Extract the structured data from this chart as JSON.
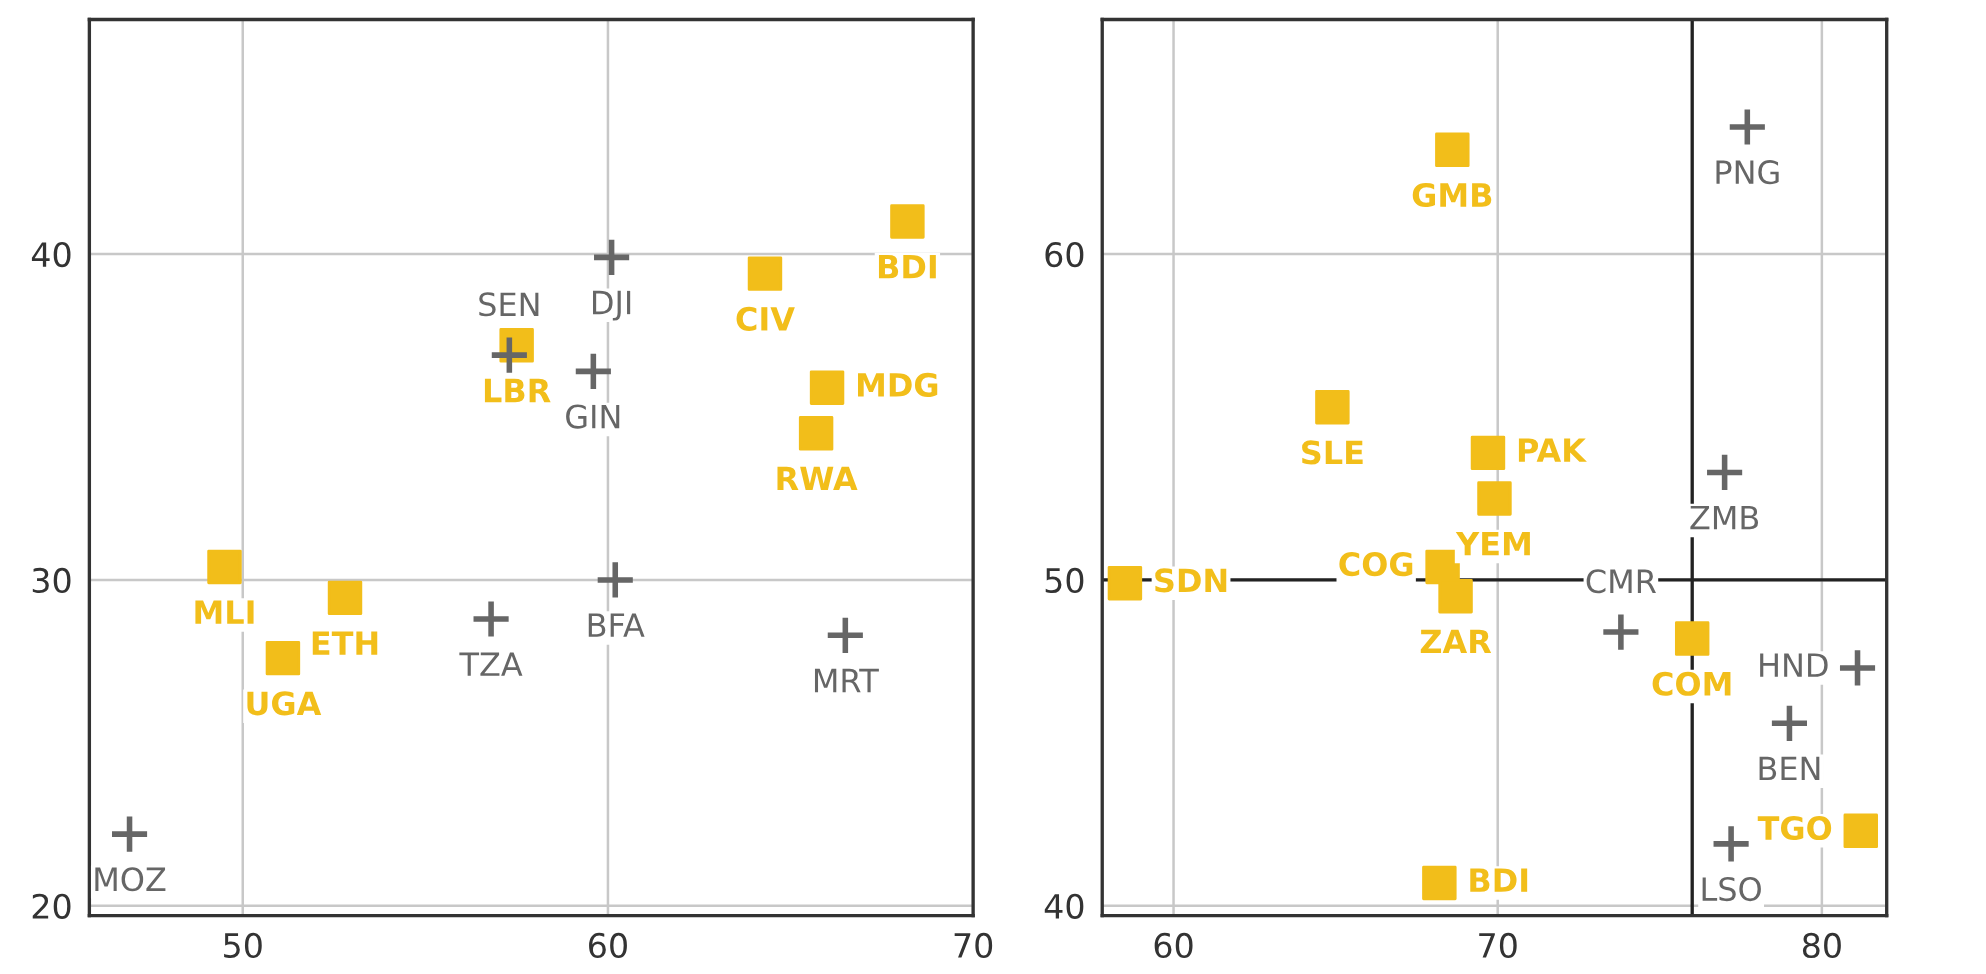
{
  "chart_data": [
    {
      "type": "scatter",
      "xlim": [
        45.8,
        70
      ],
      "ylim": [
        19.7,
        47.2
      ],
      "xticks": [
        50,
        60,
        70
      ],
      "yticks": [
        20,
        30,
        40
      ],
      "grid": true,
      "series": [
        {
          "color": "#f2be1a",
          "marker": "square",
          "x": [
            49.5,
            51.1,
            52.8,
            57.5,
            64.3,
            68.2,
            66.0,
            65.7
          ],
          "values": [
            30.4,
            27.6,
            29.45,
            37.2,
            39.4,
            41.0,
            35.9,
            34.5
          ]
        },
        {
          "color": "#666666",
          "marker": "cross",
          "x": [
            46.9,
            56.8,
            57.3,
            60.1,
            59.6,
            60.2,
            66.5
          ],
          "values": [
            22.2,
            28.8,
            36.9,
            39.9,
            36.4,
            30.0,
            28.3
          ]
        }
      ],
      "annotations": [
        {
          "text": "MLI",
          "x": 49.5,
          "y": 30.4
        },
        {
          "text": "UGA",
          "x": 51.1,
          "y": 27.6
        },
        {
          "text": "ETH",
          "x": 52.8,
          "y": 29.45
        },
        {
          "text": "LBR",
          "x": 57.5,
          "y": 37.2
        },
        {
          "text": "CIV",
          "x": 64.3,
          "y": 39.4
        },
        {
          "text": "BDI",
          "x": 68.2,
          "y": 41.0
        },
        {
          "text": "MDG",
          "x": 66.0,
          "y": 35.9
        },
        {
          "text": "RWA",
          "x": 65.7,
          "y": 34.5
        },
        {
          "text": "MOZ",
          "x": 46.9,
          "y": 22.2
        },
        {
          "text": "TZA",
          "x": 56.8,
          "y": 28.8
        },
        {
          "text": "SEN",
          "x": 57.3,
          "y": 36.9
        },
        {
          "text": "DJI",
          "x": 60.1,
          "y": 39.9
        },
        {
          "text": "GIN",
          "x": 59.6,
          "y": 36.4
        },
        {
          "text": "BFA",
          "x": 60.2,
          "y": 30.0
        },
        {
          "text": "MRT",
          "x": 66.5,
          "y": 28.3
        }
      ]
    },
    {
      "type": "scatter",
      "xlim": [
        57.8,
        82
      ],
      "ylim": [
        39.7,
        67.2
      ],
      "xticks": [
        60,
        70,
        80
      ],
      "yticks": [
        40,
        50,
        60
      ],
      "grid": true,
      "ref_lines": [
        {
          "axis": "x",
          "value": 76,
          "color": "#222222"
        },
        {
          "axis": "y",
          "value": 50,
          "color": "#222222"
        }
      ],
      "series": [
        {
          "color": "#f2be1a",
          "marker": "square",
          "x": [
            68.6,
            64.9,
            69.7,
            69.9,
            68.3,
            68.7,
            58.5,
            76.0,
            81.2,
            68.2
          ],
          "values": [
            63.2,
            55.3,
            53.9,
            52.5,
            50.4,
            49.5,
            49.9,
            48.2,
            42.3,
            40.7
          ]
        },
        {
          "color": "#666666",
          "marker": "cross",
          "x": [
            77.7,
            77.0,
            73.8,
            81.1,
            79.0,
            77.2
          ],
          "values": [
            63.9,
            53.3,
            48.4,
            47.3,
            45.6,
            41.9
          ]
        }
      ],
      "annotations": [
        {
          "text": "GMB",
          "x": 68.6,
          "y": 63.2
        },
        {
          "text": "SLE",
          "x": 64.9,
          "y": 55.3
        },
        {
          "text": "PAK",
          "x": 69.7,
          "y": 53.9
        },
        {
          "text": "YEM",
          "x": 69.9,
          "y": 52.5
        },
        {
          "text": "COG",
          "x": 68.3,
          "y": 50.4
        },
        {
          "text": "ZAR",
          "x": 68.7,
          "y": 49.5
        },
        {
          "text": "SDN",
          "x": 58.5,
          "y": 49.9
        },
        {
          "text": "COM",
          "x": 76.0,
          "y": 48.2
        },
        {
          "text": "TGO",
          "x": 81.2,
          "y": 42.3
        },
        {
          "text": "BDI",
          "x": 68.2,
          "y": 40.7
        },
        {
          "text": "PNG",
          "x": 77.7,
          "y": 63.9
        },
        {
          "text": "ZMB",
          "x": 77.0,
          "y": 53.3
        },
        {
          "text": "CMR",
          "x": 73.8,
          "y": 48.4
        },
        {
          "text": "HND",
          "x": 81.1,
          "y": 47.3
        },
        {
          "text": "BEN",
          "x": 79.0,
          "y": 45.6
        },
        {
          "text": "LSO",
          "x": 77.2,
          "y": 41.9
        }
      ]
    }
  ]
}
